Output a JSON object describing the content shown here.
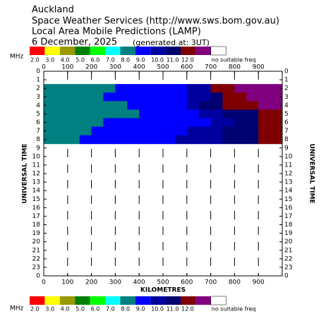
{
  "chart_data": {
    "type": "heatmap",
    "header": [
      "Auckland",
      "Space Weather Services (http://www.sws.bom.gov.au)",
      "Local Area Mobile Predictions (LAMP)",
      "6 December, 2025"
    ],
    "generated": "(generated at: 3UT)",
    "legend_unit": "MHz",
    "legend": [
      {
        "value": 2,
        "label": "2.0",
        "color": "#ff0000"
      },
      {
        "value": 3,
        "label": "3.0",
        "color": "#ffff00"
      },
      {
        "value": 4,
        "label": "4.0",
        "color": "#999900"
      },
      {
        "value": 5,
        "label": "5.0",
        "color": "#008000"
      },
      {
        "value": 6,
        "label": "6.0",
        "color": "#00ff00"
      },
      {
        "value": 7,
        "label": "7.0",
        "color": "#00ffff"
      },
      {
        "value": 8,
        "label": "8.0",
        "color": "#008080"
      },
      {
        "value": 9,
        "label": "9.0",
        "color": "#0000ff"
      },
      {
        "value": 10,
        "label": "10.0",
        "color": "#0000a0"
      },
      {
        "value": 11,
        "label": "11.0",
        "color": "#000070"
      },
      {
        "value": 12,
        "label": "12.0",
        "color": "#800000"
      },
      {
        "value": 13,
        "label": null,
        "color": "#800080"
      },
      {
        "value": null,
        "label": "no suitable freq",
        "color": "#ffffff"
      }
    ],
    "xlabel": "KILOMETRES",
    "ylabel": "UNIVERSAL TIME",
    "xlim": [
      0,
      1000
    ],
    "xticks": [
      0,
      100,
      200,
      300,
      400,
      500,
      600,
      700,
      800,
      900
    ],
    "ylim": [
      0,
      24
    ],
    "yticks": [
      0,
      1,
      2,
      3,
      4,
      5,
      6,
      7,
      8,
      9,
      10,
      11,
      12,
      13,
      14,
      15,
      16,
      17,
      18,
      19,
      20,
      21,
      22,
      23,
      {
        "value": 24,
        "label": "0"
      }
    ],
    "grid": true,
    "xbins": [
      0,
      50,
      100,
      150,
      200,
      250,
      300,
      350,
      400,
      450,
      500,
      550,
      600,
      650,
      700,
      750,
      800,
      850,
      900,
      950,
      1000
    ],
    "rows": [
      {
        "hour": 2,
        "values": [
          8,
          8,
          8,
          8,
          8,
          8,
          9,
          9,
          9,
          9,
          9,
          9,
          10,
          10,
          12,
          12,
          13,
          13,
          13,
          13
        ]
      },
      {
        "hour": 3,
        "values": [
          8,
          8,
          8,
          8,
          8,
          9,
          9,
          9,
          9,
          9,
          9,
          9,
          10,
          10,
          11,
          12,
          12,
          13,
          13,
          13
        ]
      },
      {
        "hour": 4,
        "values": [
          8,
          8,
          8,
          8,
          8,
          8,
          8,
          9,
          9,
          9,
          9,
          9,
          10,
          11,
          11,
          12,
          12,
          12,
          13,
          13
        ]
      },
      {
        "hour": 5,
        "values": [
          8,
          8,
          8,
          8,
          8,
          8,
          8,
          8,
          9,
          9,
          9,
          9,
          9,
          10,
          10,
          11,
          11,
          11,
          12,
          12
        ]
      },
      {
        "hour": 6,
        "values": [
          8,
          8,
          8,
          8,
          8,
          9,
          9,
          9,
          9,
          9,
          9,
          9,
          9,
          9,
          10,
          10,
          11,
          11,
          12,
          12
        ]
      },
      {
        "hour": 7,
        "values": [
          8,
          8,
          8,
          8,
          9,
          9,
          9,
          9,
          9,
          9,
          9,
          9,
          10,
          10,
          10,
          11,
          11,
          11,
          12,
          12
        ]
      },
      {
        "hour": 8,
        "values": [
          8,
          8,
          8,
          9,
          9,
          9,
          9,
          9,
          9,
          9,
          9,
          10,
          10,
          10,
          10,
          11,
          11,
          11,
          12,
          12
        ]
      }
    ]
  }
}
